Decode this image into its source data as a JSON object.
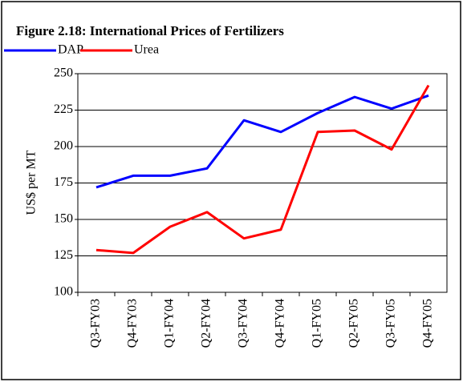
{
  "chart_data": {
    "type": "line",
    "title": "Figure 2.18: International Prices of Fertilizers",
    "y_label": "US$ per MT",
    "categories": [
      "Q3-FY03",
      "Q4-FY03",
      "Q1-FY04",
      "Q2-FY04",
      "Q3-FY04",
      "Q4-FY04",
      "Q1-FY05",
      "Q2-FY05",
      "Q3-FY05",
      "Q4-FY05"
    ],
    "series": [
      {
        "name": "DAP",
        "color": "#0000ff",
        "values": [
          172,
          180,
          180,
          185,
          218,
          210,
          223,
          234,
          226,
          235
        ]
      },
      {
        "name": "Urea",
        "color": "#ff0000",
        "values": [
          129,
          127,
          145,
          155,
          137,
          143,
          210,
          211,
          198,
          242
        ]
      }
    ],
    "ylim": [
      100,
      250
    ],
    "yticks": [
      100,
      125,
      150,
      175,
      200,
      225,
      250
    ],
    "grid": true,
    "legend": "top-left"
  }
}
